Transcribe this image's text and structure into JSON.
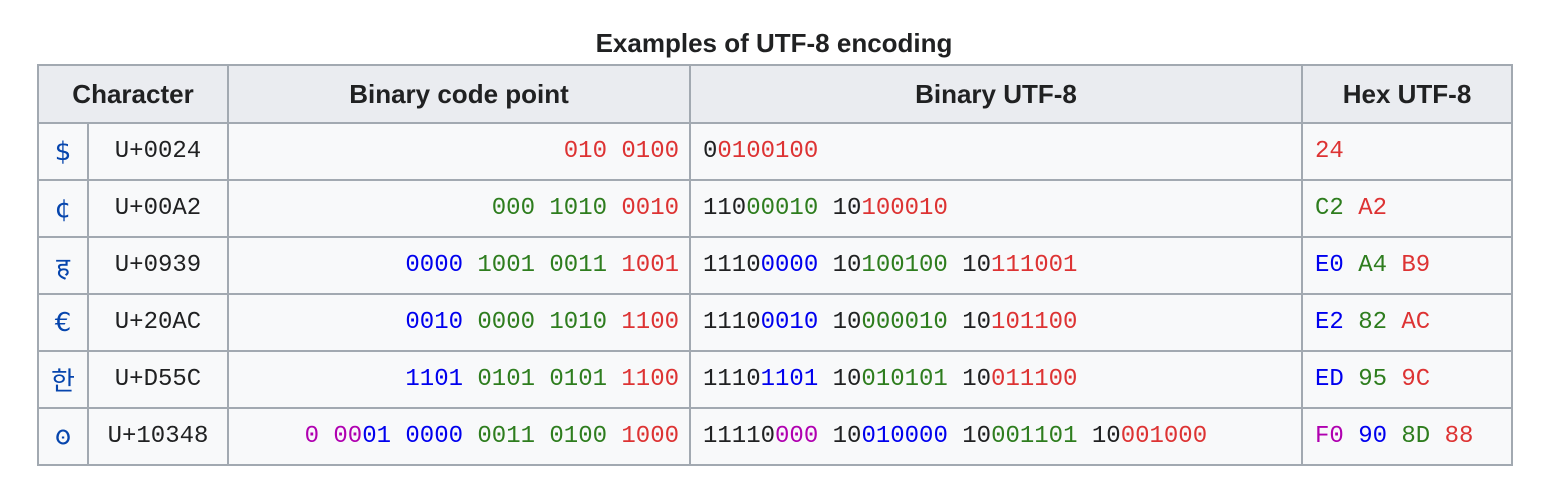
{
  "caption": "Examples of UTF-8 encoding",
  "headers": {
    "character": "Character",
    "binary_code_point": "Binary code point",
    "binary_utf8": "Binary UTF-8",
    "hex_utf8": "Hex UTF-8"
  },
  "colors": {
    "k": "#202122",
    "r": "#dd3333",
    "g": "#2e7d1e",
    "b": "#0000ee",
    "m": "#b000b0"
  },
  "rows": [
    {
      "char": "$",
      "codepoint": "U+0024",
      "binary_code_point": [
        [
          [
            "010",
            "r"
          ]
        ],
        [
          [
            "0100",
            "r"
          ]
        ]
      ],
      "binary_utf8": [
        [
          [
            "0",
            "k"
          ],
          [
            "0100100",
            "r"
          ]
        ]
      ],
      "hex_utf8": [
        [
          [
            "24",
            "r"
          ]
        ]
      ]
    },
    {
      "char": "¢",
      "codepoint": "U+00A2",
      "binary_code_point": [
        [
          [
            "000",
            "g"
          ]
        ],
        [
          [
            "1010",
            "g"
          ]
        ],
        [
          [
            "0010",
            "r"
          ]
        ]
      ],
      "binary_utf8": [
        [
          [
            "110",
            "k"
          ],
          [
            "00010",
            "g"
          ]
        ],
        [
          [
            "10",
            "k"
          ],
          [
            "100010",
            "r"
          ]
        ]
      ],
      "hex_utf8": [
        [
          [
            "C2",
            "g"
          ]
        ],
        [
          [
            "A2",
            "r"
          ]
        ]
      ]
    },
    {
      "char": "ह",
      "codepoint": "U+0939",
      "binary_code_point": [
        [
          [
            "0000",
            "b"
          ]
        ],
        [
          [
            "1001",
            "g"
          ]
        ],
        [
          [
            "0011",
            "g"
          ]
        ],
        [
          [
            "1001",
            "r"
          ]
        ]
      ],
      "binary_utf8": [
        [
          [
            "1110",
            "k"
          ],
          [
            "0000",
            "b"
          ]
        ],
        [
          [
            "10",
            "k"
          ],
          [
            "100100",
            "g"
          ]
        ],
        [
          [
            "10",
            "k"
          ],
          [
            "111001",
            "r"
          ]
        ]
      ],
      "hex_utf8": [
        [
          [
            "E0",
            "b"
          ]
        ],
        [
          [
            "A4",
            "g"
          ]
        ],
        [
          [
            "B9",
            "r"
          ]
        ]
      ]
    },
    {
      "char": "€",
      "codepoint": "U+20AC",
      "binary_code_point": [
        [
          [
            "0010",
            "b"
          ]
        ],
        [
          [
            "0000",
            "g"
          ]
        ],
        [
          [
            "1010",
            "g"
          ]
        ],
        [
          [
            "1100",
            "r"
          ]
        ]
      ],
      "binary_utf8": [
        [
          [
            "1110",
            "k"
          ],
          [
            "0010",
            "b"
          ]
        ],
        [
          [
            "10",
            "k"
          ],
          [
            "000010",
            "g"
          ]
        ],
        [
          [
            "10",
            "k"
          ],
          [
            "101100",
            "r"
          ]
        ]
      ],
      "hex_utf8": [
        [
          [
            "E2",
            "b"
          ]
        ],
        [
          [
            "82",
            "g"
          ]
        ],
        [
          [
            "AC",
            "r"
          ]
        ]
      ]
    },
    {
      "char": "한",
      "codepoint": "U+D55C",
      "binary_code_point": [
        [
          [
            "1101",
            "b"
          ]
        ],
        [
          [
            "0101",
            "g"
          ]
        ],
        [
          [
            "0101",
            "g"
          ]
        ],
        [
          [
            "1100",
            "r"
          ]
        ]
      ],
      "binary_utf8": [
        [
          [
            "1110",
            "k"
          ],
          [
            "1101",
            "b"
          ]
        ],
        [
          [
            "10",
            "k"
          ],
          [
            "010101",
            "g"
          ]
        ],
        [
          [
            "10",
            "k"
          ],
          [
            "011100",
            "r"
          ]
        ]
      ],
      "hex_utf8": [
        [
          [
            "ED",
            "b"
          ]
        ],
        [
          [
            "95",
            "g"
          ]
        ],
        [
          [
            "9C",
            "r"
          ]
        ]
      ]
    },
    {
      "char": "𐍈",
      "codepoint": "U+10348",
      "binary_code_point": [
        [
          [
            "0",
            "m"
          ]
        ],
        [
          [
            "00",
            "m"
          ],
          [
            "01",
            "b"
          ]
        ],
        [
          [
            "0000",
            "b"
          ]
        ],
        [
          [
            "0011",
            "g"
          ]
        ],
        [
          [
            "0100",
            "g"
          ]
        ],
        [
          [
            "1000",
            "r"
          ]
        ]
      ],
      "binary_utf8": [
        [
          [
            "11110",
            "k"
          ],
          [
            "000",
            "m"
          ]
        ],
        [
          [
            "10",
            "k"
          ],
          [
            "010000",
            "b"
          ]
        ],
        [
          [
            "10",
            "k"
          ],
          [
            "001101",
            "g"
          ]
        ],
        [
          [
            "10",
            "k"
          ],
          [
            "001000",
            "r"
          ]
        ]
      ],
      "hex_utf8": [
        [
          [
            "F0",
            "m"
          ]
        ],
        [
          [
            "90",
            "b"
          ]
        ],
        [
          [
            "8D",
            "g"
          ]
        ],
        [
          [
            "88",
            "r"
          ]
        ]
      ]
    }
  ]
}
